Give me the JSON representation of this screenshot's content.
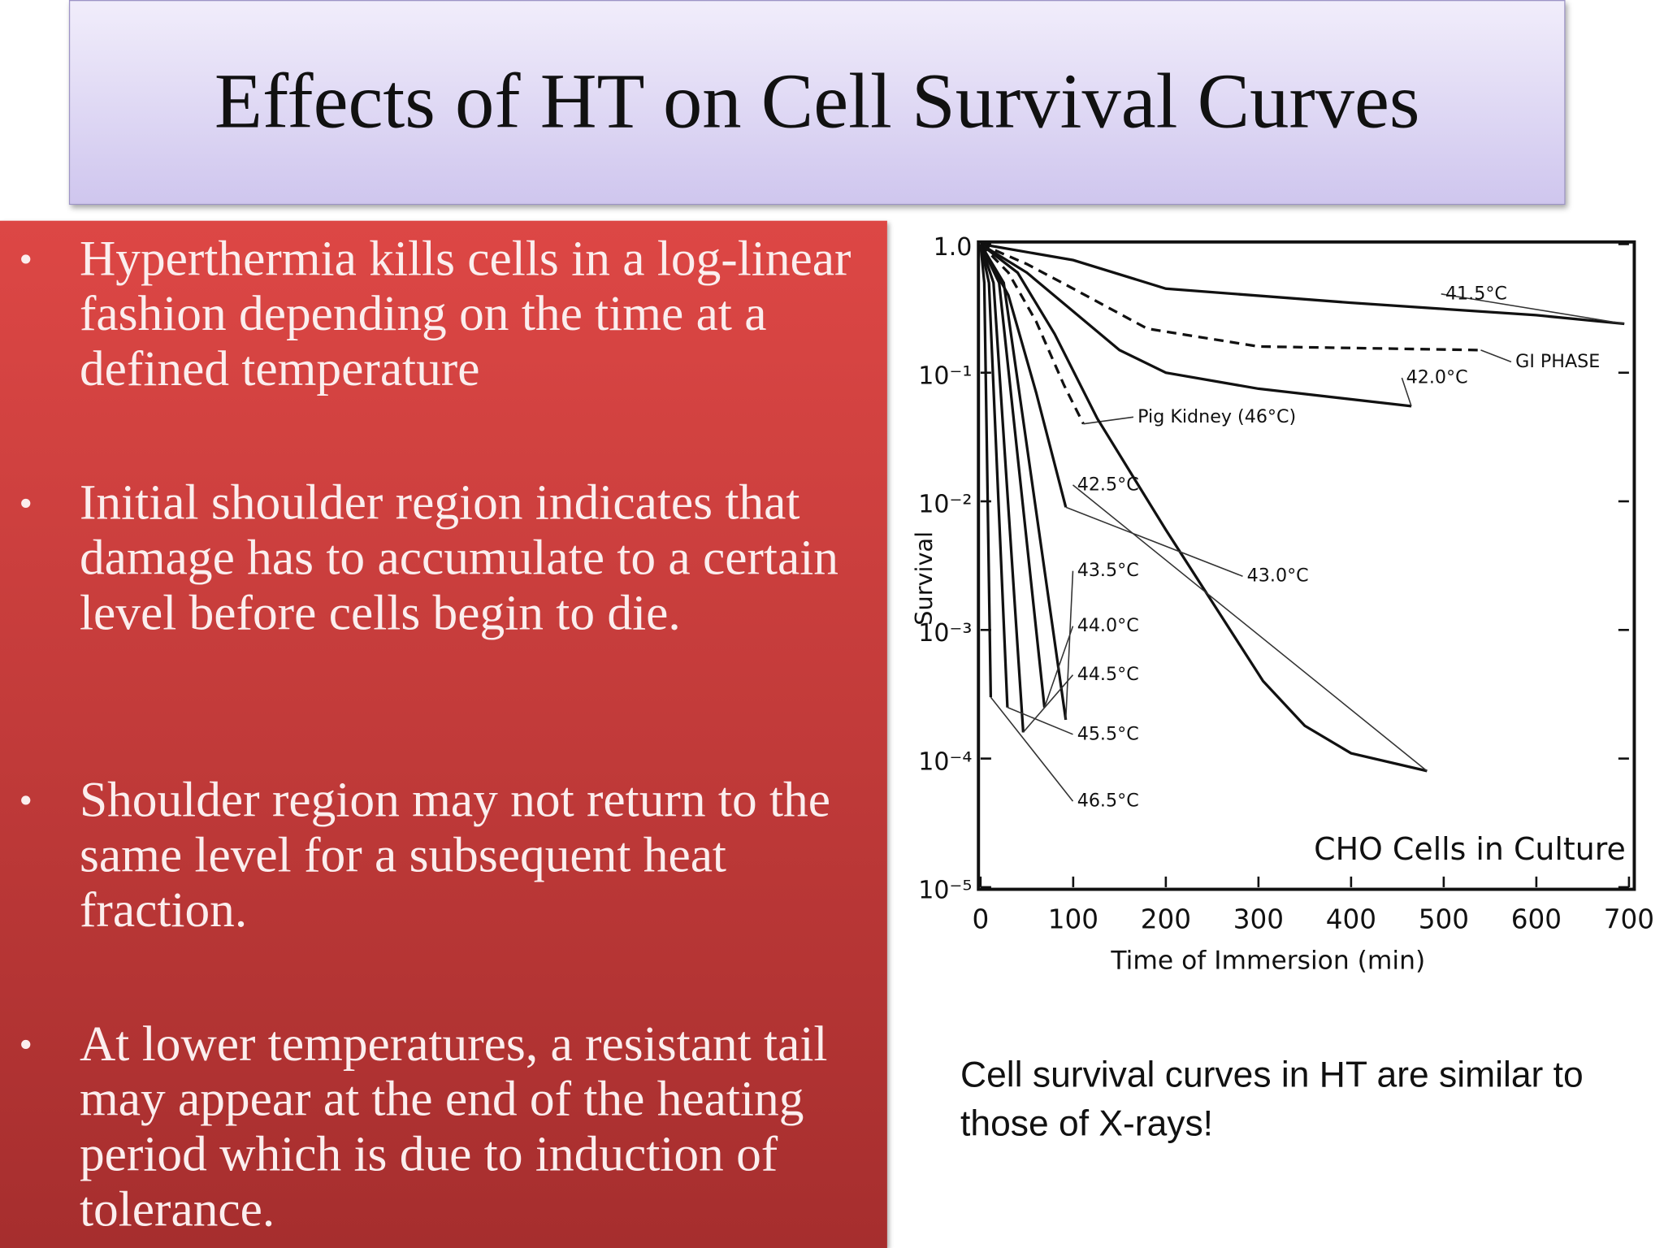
{
  "title": "Effects of HT on Cell Survival Curves",
  "bullets": [
    "Hyperthermia kills cells in a log-linear fashion depending on the time at a defined temperature",
    "Initial shoulder region indicates that damage has to accumulate to a certain level before cells begin to die.",
    "Shoulder region may not return to the same level for a subsequent heat fraction.",
    "At lower temperatures, a resistant tail may appear at the end of the heating period which is due to induction of tolerance."
  ],
  "caption": "Cell survival curves in HT are similar to those of X-rays!",
  "chart_data": {
    "type": "line",
    "annotation": "CHO Cells in Culture",
    "x_label": "Time of Immersion (min)",
    "y_label": "Survival",
    "log_scale": true,
    "grid": false,
    "xlim": [
      0,
      700
    ],
    "ylim": [
      1e-05,
      1
    ],
    "xticks": [
      0,
      100,
      200,
      300,
      400,
      500,
      600,
      700
    ],
    "yticks": [
      {
        "value": 1,
        "label": "1.0"
      },
      {
        "value": 0.1,
        "label": "10⁻¹"
      },
      {
        "value": 0.01,
        "label": "10⁻²"
      },
      {
        "value": 0.001,
        "label": "10⁻³"
      },
      {
        "value": 0.0001,
        "label": "10⁻⁴"
      },
      {
        "value": 1e-05,
        "label": "10⁻⁵"
      }
    ],
    "series": [
      {
        "name": "41.5°C",
        "color": "#111111",
        "dashed": false,
        "x": [
          0,
          100,
          200,
          400,
          600,
          695
        ],
        "values": [
          1,
          0.75,
          0.45,
          0.35,
          0.28,
          0.24
        ]
      },
      {
        "name": "GI PHASE",
        "color": "#111111",
        "dashed": true,
        "x": [
          0,
          50,
          100,
          180,
          300,
          540
        ],
        "values": [
          1,
          0.7,
          0.45,
          0.22,
          0.16,
          0.15
        ]
      },
      {
        "name": "42.0°C",
        "color": "#111111",
        "dashed": false,
        "x": [
          0,
          50,
          100,
          150,
          200,
          300,
          465
        ],
        "values": [
          1,
          0.6,
          0.3,
          0.15,
          0.1,
          0.075,
          0.055
        ]
      },
      {
        "name": "Pig Kidney (46°C)",
        "color": "#111111",
        "dashed": true,
        "x": [
          0,
          30,
          60,
          90,
          111
        ],
        "values": [
          1,
          0.6,
          0.25,
          0.08,
          0.04
        ]
      },
      {
        "name": "42.5°C",
        "color": "#111111",
        "dashed": false,
        "x": [
          0,
          40,
          80,
          126,
          200,
          305,
          350,
          400,
          482
        ],
        "values": [
          1,
          0.6,
          0.2,
          0.044,
          0.006,
          0.0004,
          0.00018,
          0.00011,
          8e-05
        ]
      },
      {
        "name": "43.0°C",
        "color": "#111111",
        "dashed": false,
        "x": [
          0,
          30,
          60,
          92
        ],
        "values": [
          1,
          0.4,
          0.07,
          0.009
        ]
      },
      {
        "name": "43.5°C",
        "color": "#111111",
        "dashed": false,
        "x": [
          0,
          25,
          92
        ],
        "values": [
          1,
          0.5,
          0.0002
        ]
      },
      {
        "name": "44.0°C",
        "color": "#111111",
        "dashed": false,
        "x": [
          0,
          20,
          69
        ],
        "values": [
          1,
          0.5,
          0.00025
        ]
      },
      {
        "name": "44.5°C",
        "color": "#111111",
        "dashed": false,
        "x": [
          0,
          14,
          46
        ],
        "values": [
          1,
          0.5,
          0.00016
        ]
      },
      {
        "name": "45.5°C",
        "color": "#111111",
        "dashed": false,
        "x": [
          0,
          9,
          29
        ],
        "values": [
          1,
          0.5,
          0.00025
        ]
      },
      {
        "name": "46.5°C",
        "color": "#111111",
        "dashed": false,
        "x": [
          0,
          4,
          11
        ],
        "values": [
          1,
          0.5,
          0.0003
        ]
      }
    ]
  }
}
